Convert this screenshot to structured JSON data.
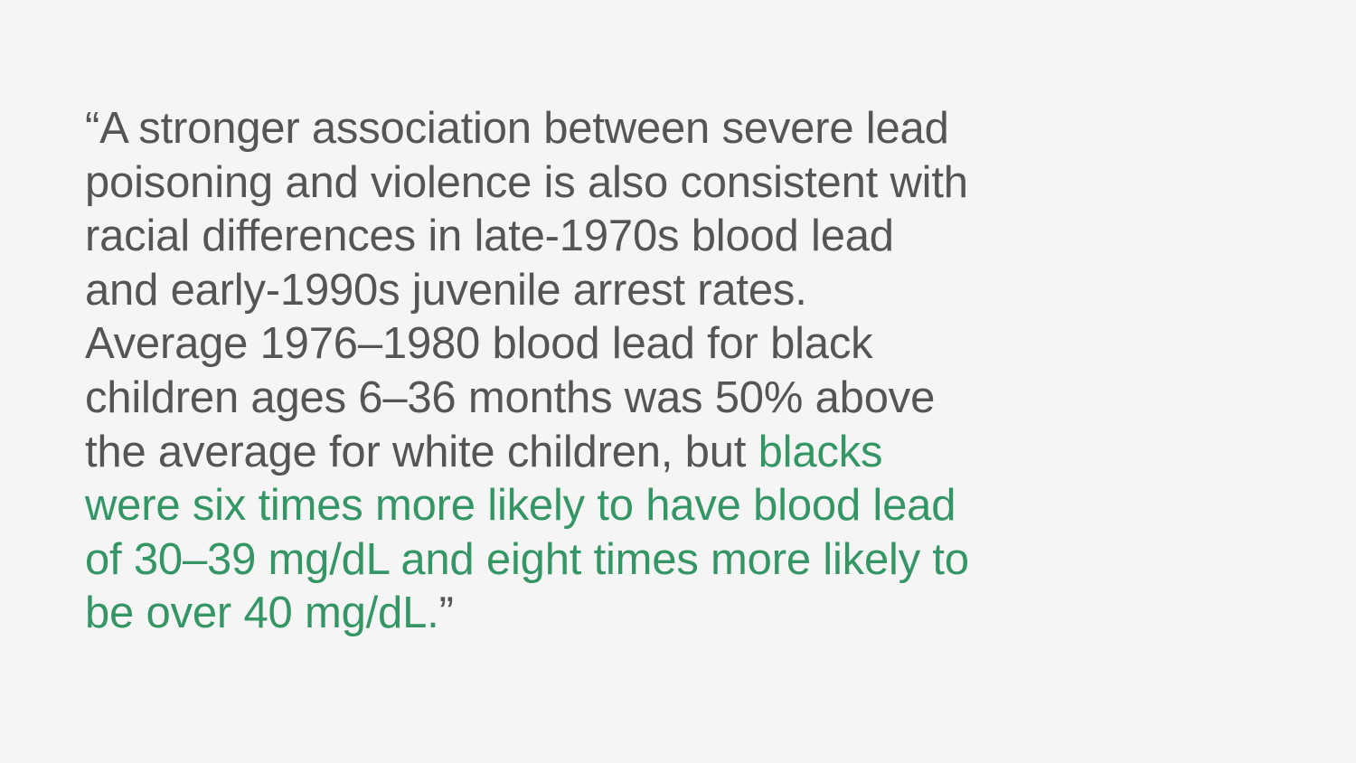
{
  "colors": {
    "background": "#f5f5f5",
    "text": "#555555",
    "highlight": "#359665"
  },
  "quote": {
    "lines": [
      [
        {
          "text": "“A stronger association between severe lead",
          "highlight": false
        }
      ],
      [
        {
          "text": "poisoning and violence is also consistent with",
          "highlight": false
        }
      ],
      [
        {
          "text": "racial differences in late-1970s blood lead",
          "highlight": false
        }
      ],
      [
        {
          "text": "and early-1990s juvenile arrest rates.",
          "highlight": false
        }
      ],
      [
        {
          "text": "Average 1976–1980 blood lead for black",
          "highlight": false
        }
      ],
      [
        {
          "text": "children ages 6–36 months was 50% above",
          "highlight": false
        }
      ],
      [
        {
          "text": "the average for white children, but ",
          "highlight": false
        },
        {
          "text": "blacks",
          "highlight": true
        }
      ],
      [
        {
          "text": "were six times more likely to have blood lead",
          "highlight": true
        }
      ],
      [
        {
          "text": "of 30–39 mg/dL and eight times more likely to",
          "highlight": true
        }
      ],
      [
        {
          "text": "be over 40 mg/dL.",
          "highlight": true
        },
        {
          "text": "”",
          "highlight": false
        }
      ]
    ]
  }
}
